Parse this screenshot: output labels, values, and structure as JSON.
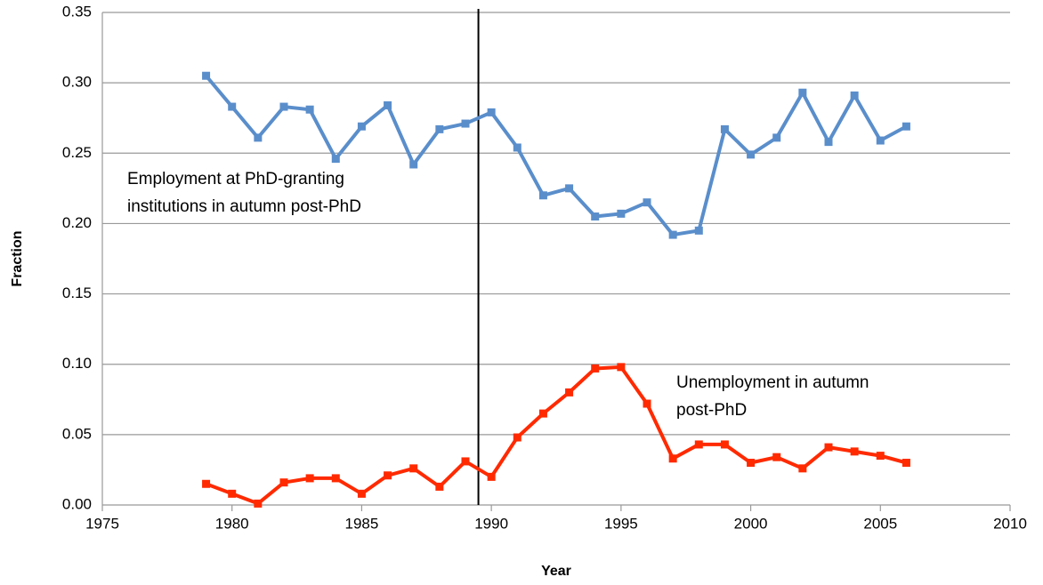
{
  "chart_data": {
    "type": "line",
    "x_label": "Year",
    "y_label": "Fraction",
    "x": [
      1979,
      1980,
      1981,
      1982,
      1983,
      1984,
      1985,
      1986,
      1987,
      1988,
      1989,
      1990,
      1991,
      1992,
      1993,
      1994,
      1995,
      1996,
      1997,
      1998,
      1999,
      2000,
      2001,
      2002,
      2003,
      2004,
      2005,
      2006
    ],
    "series": [
      {
        "name": "Employment at PhD-granting institutions in autumn post-PhD",
        "color": "#5a8ecb",
        "values": [
          0.305,
          0.283,
          0.261,
          0.283,
          0.281,
          0.246,
          0.269,
          0.284,
          0.242,
          0.267,
          0.271,
          0.279,
          0.254,
          0.22,
          0.225,
          0.205,
          0.207,
          0.215,
          0.192,
          0.195,
          0.267,
          0.249,
          0.261,
          0.293,
          0.258,
          0.291,
          0.259,
          0.269
        ]
      },
      {
        "name": "Unemployment in autumn post-PhD",
        "color": "#ff2a00",
        "values": [
          0.015,
          0.008,
          0.001,
          0.016,
          0.019,
          0.019,
          0.008,
          0.021,
          0.026,
          0.013,
          0.031,
          0.02,
          0.048,
          0.065,
          0.08,
          0.097,
          0.098,
          0.072,
          0.033,
          0.043,
          0.043,
          0.03,
          0.034,
          0.026,
          0.041,
          0.038,
          0.035,
          0.03
        ]
      }
    ],
    "annotations": [
      {
        "lines": [
          "Employment at PhD-granting",
          "institutions in autumn post-PhD"
        ]
      },
      {
        "lines": [
          "Unemployment in autumn",
          "post-PhD"
        ]
      }
    ],
    "reference_line_x": 1989.5,
    "xlim": [
      1975,
      2010
    ],
    "xticks": [
      1975,
      1980,
      1985,
      1990,
      1995,
      2000,
      2005,
      2010
    ],
    "ylim": [
      0,
      0.35
    ],
    "yticks": [
      {
        "value": 0,
        "label": "0.00"
      },
      {
        "value": 0.05,
        "label": "0.05"
      },
      {
        "value": 0.1,
        "label": "0.10"
      },
      {
        "value": 0.15,
        "label": "0.15"
      },
      {
        "value": 0.2,
        "label": "0.20"
      },
      {
        "value": 0.25,
        "label": "0.25"
      },
      {
        "value": 0.3,
        "label": "0.30"
      },
      {
        "value": 0.35,
        "label": "0.35"
      }
    ],
    "grid": true
  }
}
